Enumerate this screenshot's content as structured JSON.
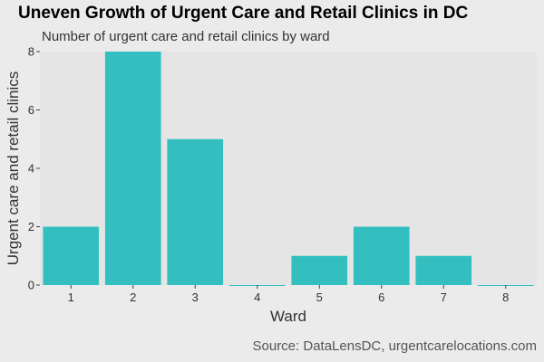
{
  "chart_data": {
    "type": "bar",
    "title": "Uneven Growth of Urgent Care and Retail Clinics in DC",
    "subtitle": "Number of urgent care and retail clinics by ward",
    "caption": "Source: DataLensDC, urgentcarelocations.com",
    "xlabel": "Ward",
    "ylabel": "Urgent care and retail clinics",
    "categories": [
      "1",
      "2",
      "3",
      "4",
      "5",
      "6",
      "7",
      "8"
    ],
    "values": [
      2,
      8,
      5,
      0,
      1,
      2,
      1,
      0
    ],
    "ylim": [
      0,
      8
    ],
    "yticks": [
      0,
      2,
      4,
      6,
      8
    ],
    "grid": false,
    "legend": "none",
    "colors": {
      "bar": "#33bfbf",
      "panel": "#e5e5e5",
      "background": "#ebebec"
    }
  }
}
